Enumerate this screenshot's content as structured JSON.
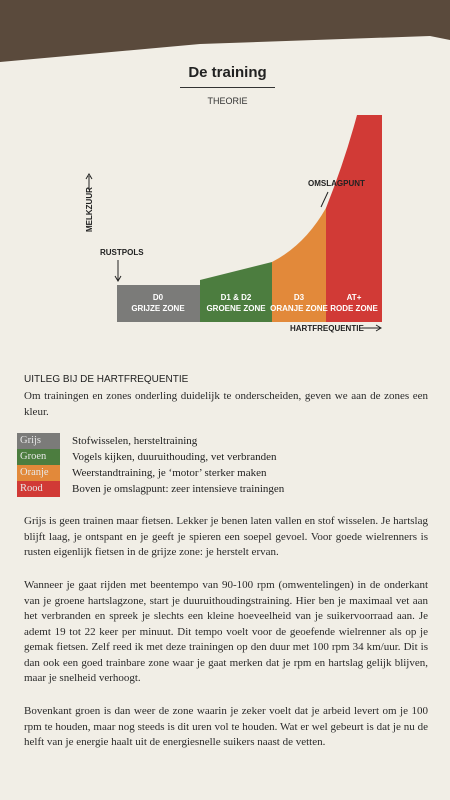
{
  "header": {
    "title": "De training",
    "subtitle": "THEORIE"
  },
  "diagram": {
    "y_axis": "MELKZUUR",
    "x_axis": "HARTFREQUENTIE",
    "rest": "RUSTPOLS",
    "threshold": "OMSLAGPUNT",
    "zones": [
      {
        "code": "D0",
        "label": "GRIJZE ZONE"
      },
      {
        "code": "D1 & D2",
        "label": "GROENE ZONE"
      },
      {
        "code": "D3",
        "label": "ORANJE ZONE"
      },
      {
        "code": "AT+",
        "label": "RODE ZONE"
      }
    ]
  },
  "section": {
    "heading": "UITLEG BIJ DE HARTFREQUENTIE",
    "intro": "Om trainingen en zones onderling duidelijk te onderscheiden, geven we aan de zones een kleur."
  },
  "legend": [
    {
      "name": "Grijs",
      "text": "Stofwisselen, hersteltraining"
    },
    {
      "name": "Groen",
      "text": "Vogels kijken, duuruithouding, vet verbranden"
    },
    {
      "name": "Oranje",
      "text": "Weerstandtraining, je ‘motor’ sterker maken"
    },
    {
      "name": "Rood",
      "text": "Boven je omslagpunt: zeer intensieve trainingen"
    }
  ],
  "paragraphs": [
    "Grijs is geen trainen maar fietsen. Lekker je benen laten vallen en stof wisselen. Je hartslag blijft laag, je ontspant en je geeft je spieren een soepel gevoel. Voor goede wielrenners is rusten eigenlijk fietsen in de grijze zone: je herstelt ervan.",
    "Wanneer je gaat rijden met beentempo van 90-100 rpm (omwentelingen) in de onderkant van je groene hartslagzone, start je duuruithoudingstraining. Hier ben je maximaal vet aan het verbranden en spreek je slechts een kleine hoeveelheid van je suikervoorraad aan. Je ademt 19 tot 22 keer per minuut. Dit tempo voelt voor de geoefende wielrenner als op je gemak fietsen. Zelf reed ik met deze trainingen op den duur met 100 rpm 34 km/uur. Dit is dan ook een goed trainbare zone waar je gaat merken dat je rpm en hartslag gelijk blijven, maar je snelheid verhoogt.",
    "Bovenkant groen is dan weer de zone waarin je zeker voelt dat je arbeid levert om je 100 rpm te houden, maar nog steeds is dit uren vol te houden. Wat er wel gebeurt is dat je nu de helft van je energie haalt uit de energiesnelle suikers naast de vetten."
  ]
}
